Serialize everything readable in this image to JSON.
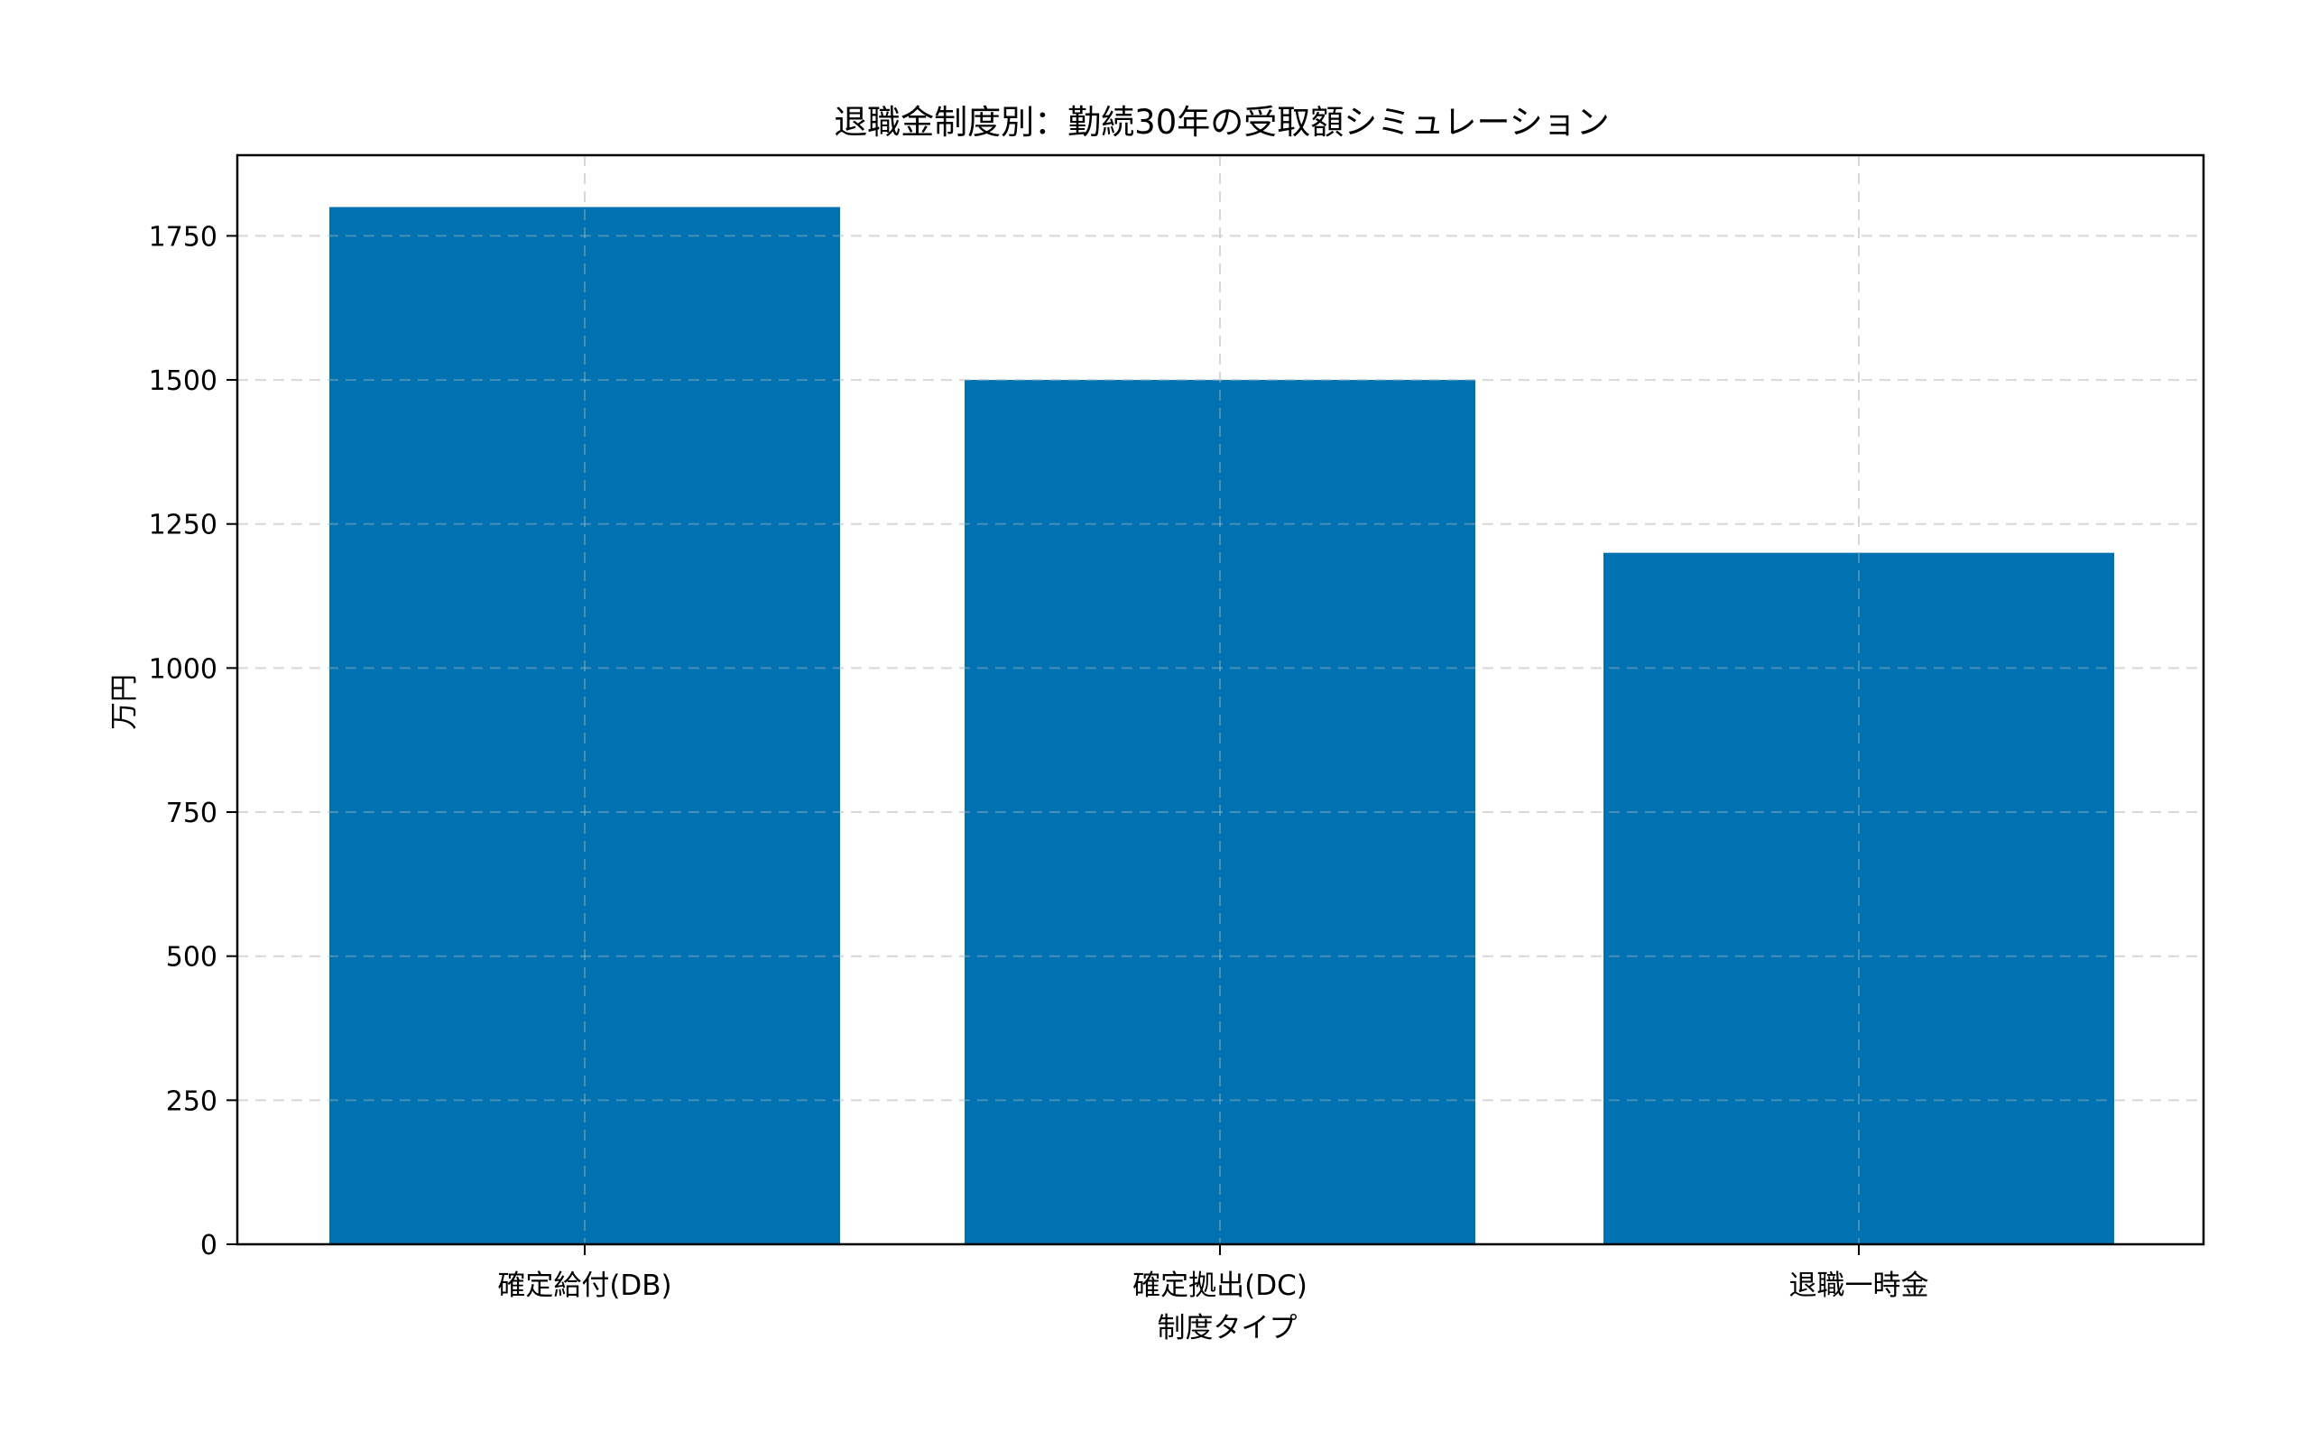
{
  "chart_data": {
    "type": "bar",
    "title": "退職金制度別：勤続30年の受取額シミュレーション",
    "xlabel": "制度タイプ",
    "ylabel": "万円",
    "categories": [
      "確定給付(DB)",
      "確定拠出(DC)",
      "退職一時金"
    ],
    "values": [
      1800,
      1500,
      1200
    ],
    "ylim": [
      0,
      1890
    ],
    "yticks": [
      0,
      250,
      500,
      750,
      1000,
      1250,
      1500,
      1750
    ],
    "grid": true,
    "grid_style": "dashed",
    "legend": null,
    "colors": {
      "bar": "#0072B2",
      "grid": "#e0e0e0",
      "axis": "#000000"
    }
  }
}
